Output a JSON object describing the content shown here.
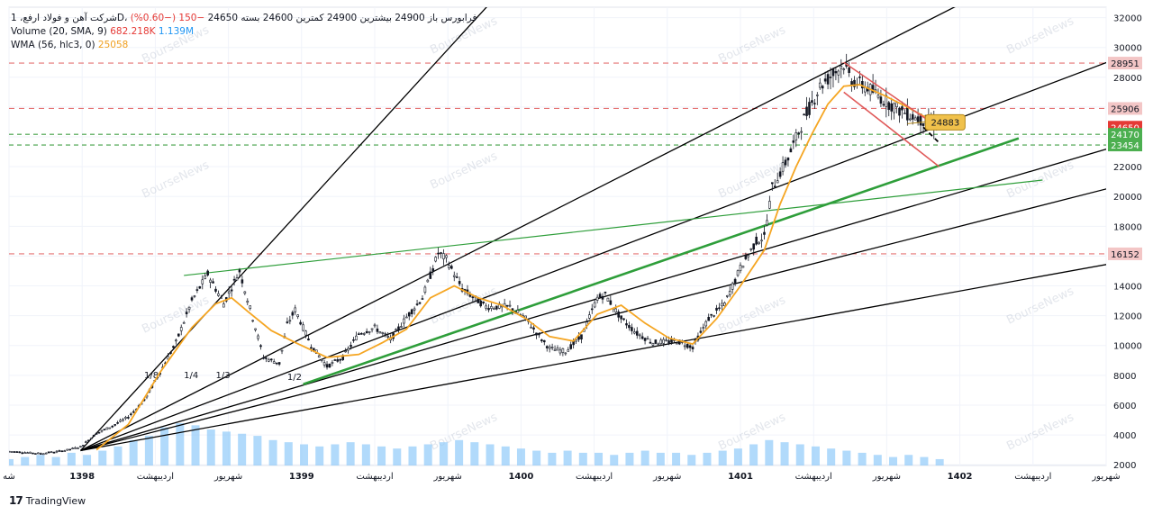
{
  "legend": {
    "symbol_line": "شرکت آهن و فولاد ارفع، 1D، فرابورس",
    "ohlc_text": "باز 24900 بیشترین 24900 کمترین 24600 بسته 24650",
    "change_text": "−150 (−0.60%)",
    "volume_label": "Volume (20, SMA, 9)",
    "volume_value": "682.218K",
    "volume_sma_value": "1.139M",
    "wma_label": "WMA (56, hlc3, 0)",
    "wma_value": "25058"
  },
  "branding": {
    "logo_text": "TradingView",
    "watermark": "BourseNews"
  },
  "colors": {
    "price_up": "#131722",
    "wma": "#f5a623",
    "volume": "#90caf9",
    "resistance": "#e57373",
    "support_dashed": "#43a047",
    "trend_green": "#2e9e3a",
    "fan_black": "#000000",
    "channel_red": "#e05a5a",
    "last_price_tag": "#e53935",
    "green_tag": "#4caf50",
    "callout": "#f0c14b"
  },
  "chart_data": {
    "type": "candlestick",
    "y_axis": {
      "ticks": [
        2000,
        4000,
        6000,
        8000,
        10000,
        12000,
        14000,
        16000,
        18000,
        20000,
        22000,
        24000,
        26000,
        28000,
        30000,
        32000
      ],
      "ylim": [
        1950,
        32700
      ]
    },
    "x_axis": {
      "labels": [
        "شه",
        "1398",
        "اردیبهشت",
        "شهریور",
        "1399",
        "اردیبهشت",
        "شهریور",
        "1400",
        "اردیبهشت",
        "شهریور",
        "1401",
        "اردیبهشت",
        "شهریور",
        "1402",
        "اردیبهشت",
        "شهریور"
      ],
      "xlim": [
        0,
        138
      ]
    },
    "price_path": [
      [
        0,
        2900
      ],
      [
        4,
        2750
      ],
      [
        7,
        2950
      ],
      [
        9,
        3200
      ],
      [
        11,
        4100
      ],
      [
        13,
        4600
      ],
      [
        15,
        5200
      ],
      [
        17,
        6300
      ],
      [
        19,
        8200
      ],
      [
        21,
        10200
      ],
      [
        23,
        13000
      ],
      [
        25,
        14800
      ],
      [
        27,
        12800
      ],
      [
        29,
        15000
      ],
      [
        31,
        11200
      ],
      [
        32,
        9200
      ],
      [
        34,
        8800
      ],
      [
        35,
        11400
      ],
      [
        36,
        12400
      ],
      [
        38,
        10000
      ],
      [
        40,
        8600
      ],
      [
        42,
        9200
      ],
      [
        44,
        10800
      ],
      [
        46,
        11200
      ],
      [
        48,
        10400
      ],
      [
        50,
        11900
      ],
      [
        52,
        13200
      ],
      [
        54,
        16200
      ],
      [
        55,
        15800
      ],
      [
        57,
        13800
      ],
      [
        60,
        12600
      ],
      [
        63,
        12600
      ],
      [
        65,
        11800
      ],
      [
        67,
        10400
      ],
      [
        68,
        9800
      ],
      [
        70,
        9600
      ],
      [
        72,
        10600
      ],
      [
        74,
        13200
      ],
      [
        75,
        13400
      ],
      [
        77,
        11800
      ],
      [
        79,
        10800
      ],
      [
        81,
        10200
      ],
      [
        84,
        10300
      ],
      [
        86,
        9900
      ],
      [
        88,
        11800
      ],
      [
        90,
        12800
      ],
      [
        92,
        15200
      ],
      [
        94,
        17000
      ],
      [
        95,
        17300
      ],
      [
        96,
        20600
      ],
      [
        98,
        22600
      ],
      [
        100,
        25200
      ],
      [
        102,
        27400
      ],
      [
        104,
        28400
      ],
      [
        105,
        28900
      ],
      [
        106,
        27800
      ],
      [
        108,
        27300
      ],
      [
        110,
        26500
      ],
      [
        112,
        25800
      ],
      [
        114,
        25300
      ],
      [
        116,
        24900
      ],
      [
        117,
        24650
      ]
    ],
    "wma_path": [
      [
        11,
        3000
      ],
      [
        15,
        4700
      ],
      [
        19,
        8200
      ],
      [
        23,
        11200
      ],
      [
        26,
        12800
      ],
      [
        28,
        13200
      ],
      [
        30,
        12300
      ],
      [
        33,
        11000
      ],
      [
        36,
        10200
      ],
      [
        40,
        9200
      ],
      [
        44,
        9400
      ],
      [
        47,
        10200
      ],
      [
        50,
        11100
      ],
      [
        53,
        13200
      ],
      [
        56,
        14000
      ],
      [
        59,
        13200
      ],
      [
        62,
        12700
      ],
      [
        65,
        11800
      ],
      [
        68,
        10600
      ],
      [
        71,
        10300
      ],
      [
        74,
        12100
      ],
      [
        77,
        12700
      ],
      [
        80,
        11500
      ],
      [
        83,
        10500
      ],
      [
        86,
        10100
      ],
      [
        89,
        11800
      ],
      [
        92,
        14000
      ],
      [
        95,
        16400
      ],
      [
        97,
        19500
      ],
      [
        99,
        22000
      ],
      [
        101,
        24200
      ],
      [
        103,
        26200
      ],
      [
        105,
        27400
      ],
      [
        107,
        27500
      ],
      [
        110,
        26800
      ],
      [
        113,
        26000
      ],
      [
        115,
        25400
      ],
      [
        117,
        25058
      ]
    ],
    "volume_bars": [
      0.15,
      0.2,
      0.25,
      0.2,
      0.3,
      0.25,
      0.35,
      0.45,
      0.6,
      0.7,
      0.9,
      1.0,
      0.95,
      0.85,
      0.8,
      0.75,
      0.7,
      0.6,
      0.55,
      0.5,
      0.45,
      0.5,
      0.55,
      0.5,
      0.45,
      0.4,
      0.45,
      0.5,
      0.55,
      0.6,
      0.55,
      0.5,
      0.45,
      0.4,
      0.35,
      0.3,
      0.35,
      0.3,
      0.3,
      0.25,
      0.3,
      0.35,
      0.3,
      0.3,
      0.25,
      0.3,
      0.35,
      0.4,
      0.5,
      0.6,
      0.55,
      0.5,
      0.45,
      0.4,
      0.35,
      0.3,
      0.25,
      0.2,
      0.25,
      0.2,
      0.15
    ],
    "horizontal_levels": [
      28951,
      25906,
      16152
    ],
    "dashed_support_levels": [
      24170,
      23454
    ],
    "price_labels": [
      {
        "value": 28951,
        "text": "28951",
        "kind": "resistance"
      },
      {
        "value": 25906,
        "text": "25906",
        "kind": "resistance"
      },
      {
        "value": 24650,
        "text": "24650",
        "kind": "last"
      },
      {
        "value": 24170,
        "text": "24170",
        "kind": "support"
      },
      {
        "value": 23454,
        "text": "23454",
        "kind": "support"
      },
      {
        "value": 16152,
        "text": "16152",
        "kind": "resistance"
      }
    ],
    "fan_origin": [
      9,
      2950
    ],
    "fan_lines": [
      {
        "to": [
          64,
          35000
        ],
        "label": ""
      },
      {
        "to": [
          120,
          33000
        ],
        "label": ""
      },
      {
        "to": [
          149,
          31200
        ],
        "label": "1/8"
      },
      {
        "to": [
          149,
          24900
        ],
        "label": "1/4"
      },
      {
        "to": [
          149,
          22000
        ],
        "label": "1/3"
      },
      {
        "to": [
          149,
          16500
        ],
        "label": "1/2"
      }
    ],
    "fan_labels": [
      {
        "text": "1/8",
        "at": [
          17,
          7800
        ]
      },
      {
        "text": "1/4",
        "at": [
          22,
          7800
        ]
      },
      {
        "text": "1/3",
        "at": [
          26,
          7800
        ]
      },
      {
        "text": "1/2",
        "at": [
          35,
          7700
        ]
      }
    ],
    "green_trend_lines": [
      {
        "from": [
          22,
          14700
        ],
        "to": [
          130,
          21100
        ],
        "weight": "thin"
      },
      {
        "from": [
          37,
          7400
        ],
        "to": [
          127,
          23900
        ],
        "weight": "thick"
      }
    ],
    "red_channel": [
      {
        "from": [
          105,
          29000
        ],
        "to": [
          117,
          24600
        ]
      },
      {
        "from": [
          105,
          27000
        ],
        "to": [
          117,
          22000
        ]
      }
    ],
    "projection_dashes": {
      "from": [
        115,
        24650
      ],
      "to": [
        117,
        23600
      ]
    },
    "callout": {
      "text": "24883",
      "anchor": [
        113,
        24883
      ]
    }
  }
}
